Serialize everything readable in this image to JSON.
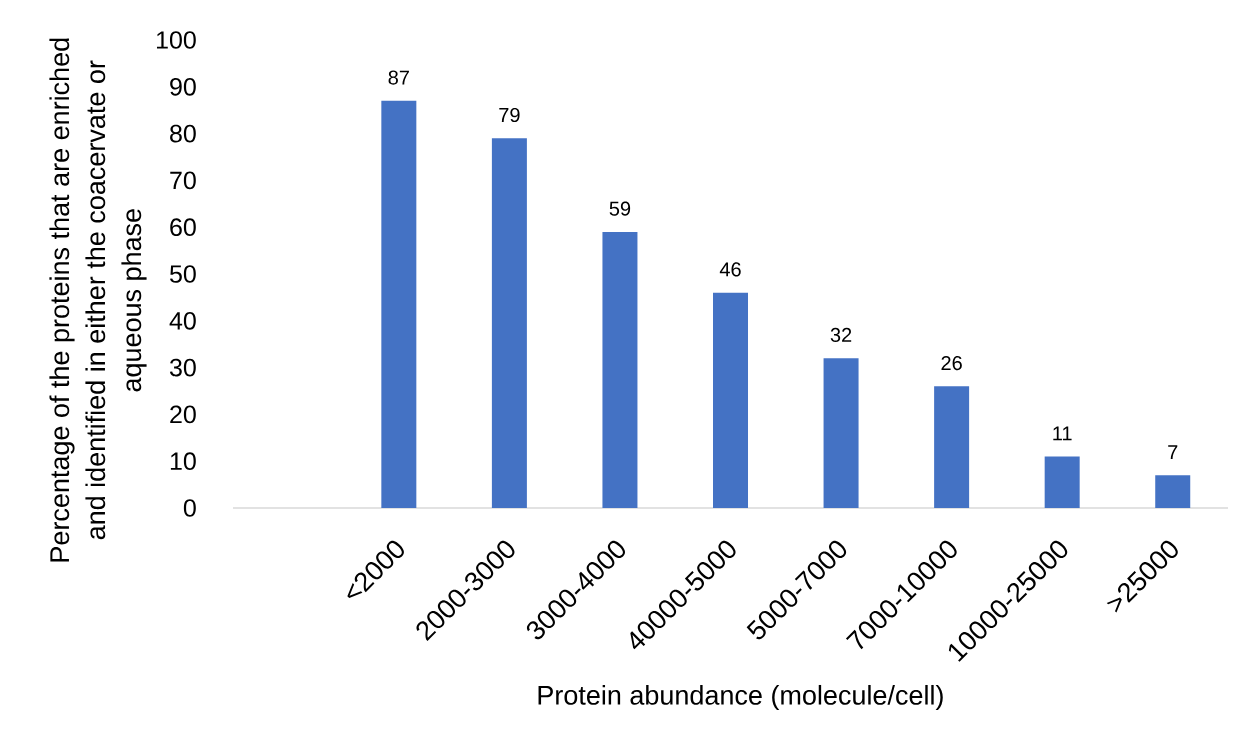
{
  "chart_data": {
    "type": "bar",
    "xlabel": "Protein abundance (molecule/cell)",
    "ylabel": "Percentage of the proteins that are enriched and identified in either the coacervate or aqueous phase",
    "categories": [
      null,
      "<2000",
      "2000-3000",
      "3000-4000",
      "40000-5000",
      "5000-7000",
      "7000-10000",
      "10000-25000",
      ">25000"
    ],
    "values": [
      null,
      87,
      79,
      59,
      46,
      32,
      26,
      11,
      7
    ],
    "color": "#4472c4",
    "ylim": [
      0,
      100
    ],
    "yticks": [
      0,
      10,
      20,
      30,
      40,
      50,
      60,
      70,
      80,
      90,
      100
    ],
    "data_labels": true
  }
}
